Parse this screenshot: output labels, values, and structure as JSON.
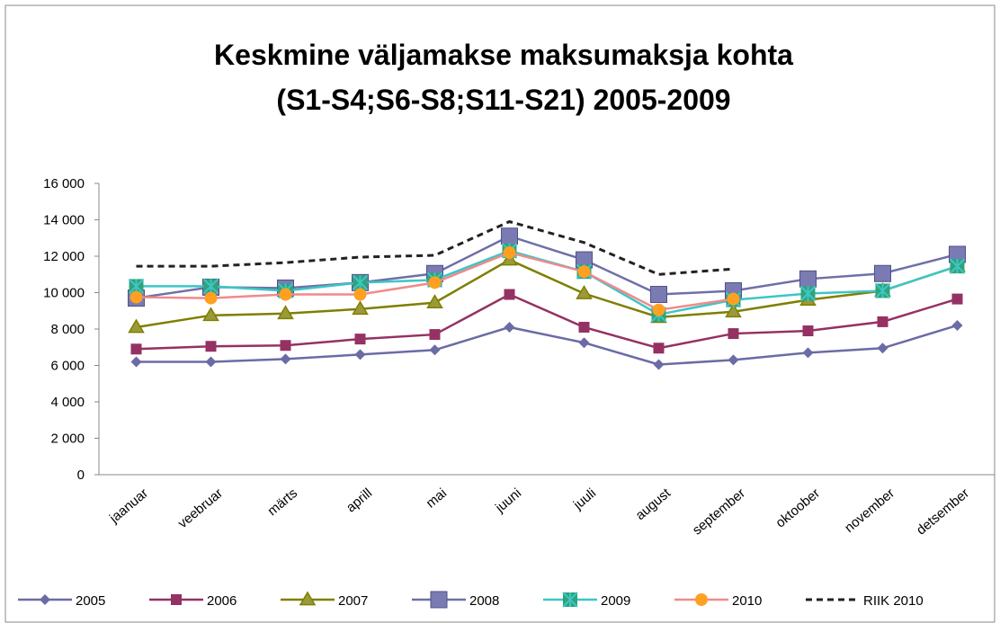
{
  "chart_data": {
    "type": "line",
    "title": [
      "Keskmine väljamakse maksumaksja kohta",
      "(S1-S4;S6-S8;S11-S21) 2005-2009"
    ],
    "categories": [
      "jaanuar",
      "veebruar",
      "märts",
      "aprill",
      "mai",
      "juuni",
      "juuli",
      "august",
      "september",
      "oktoober",
      "november",
      "detsember"
    ],
    "ylim": [
      0,
      16000
    ],
    "yticks": [
      0,
      {
        "value": 2000,
        "label": "2 000"
      },
      {
        "value": 4000,
        "label": "4 000"
      },
      {
        "value": 6000,
        "label": "6 000"
      },
      {
        "value": 8000,
        "label": "8 000"
      },
      {
        "value": 10000,
        "label": "10 000"
      },
      {
        "value": 12000,
        "label": "12 000"
      },
      {
        "value": 14000,
        "label": "14 000"
      },
      {
        "value": 16000,
        "label": "16 000"
      }
    ],
    "grid": false,
    "legend": "bottom",
    "series": [
      {
        "name": "2005",
        "color": "#6b6ba6",
        "marker": "diamond",
        "marker_color": "#6b6ba6",
        "values": [
          6200,
          6200,
          6350,
          6600,
          6850,
          8100,
          7250,
          6050,
          6300,
          6700,
          6950,
          8200
        ]
      },
      {
        "name": "2006",
        "color": "#953163",
        "marker": "square",
        "marker_color": "#953163",
        "values": [
          6900,
          7050,
          7100,
          7450,
          7700,
          9900,
          8100,
          6950,
          7750,
          7900,
          8400,
          9650
        ]
      },
      {
        "name": "2007",
        "color": "#7f7f00",
        "marker": "triangle",
        "marker_color": "#9a9a3a",
        "values": [
          8100,
          8750,
          8850,
          9100,
          9450,
          11800,
          9950,
          8650,
          8950,
          9600,
          10100,
          11450
        ]
      },
      {
        "name": "2008",
        "color": "#6f6fa8",
        "marker": "bigsquare",
        "marker_color": "#7b7bb4",
        "values": [
          9700,
          10300,
          10250,
          10550,
          11050,
          13100,
          11800,
          9900,
          10100,
          10750,
          11050,
          12100
        ]
      },
      {
        "name": "2009",
        "color": "#3cc6c6",
        "marker": "xsquare",
        "marker_color": "#2fa37a",
        "values": [
          10350,
          10350,
          10100,
          10550,
          10700,
          12300,
          11150,
          8800,
          9600,
          9950,
          10100,
          11450
        ]
      },
      {
        "name": "2010",
        "color": "#f08a8a",
        "marker": "circle",
        "marker_color": "#ffa022",
        "values": [
          9750,
          9700,
          9900,
          9900,
          10550,
          12200,
          11150,
          9050,
          9650,
          null,
          null,
          null
        ]
      },
      {
        "name": "RIIK 2010",
        "color": "#222222",
        "marker": "none",
        "dash": true,
        "values": [
          11450,
          11450,
          11650,
          11950,
          12050,
          13900,
          12750,
          11000,
          11300,
          null,
          null,
          null
        ]
      }
    ]
  }
}
